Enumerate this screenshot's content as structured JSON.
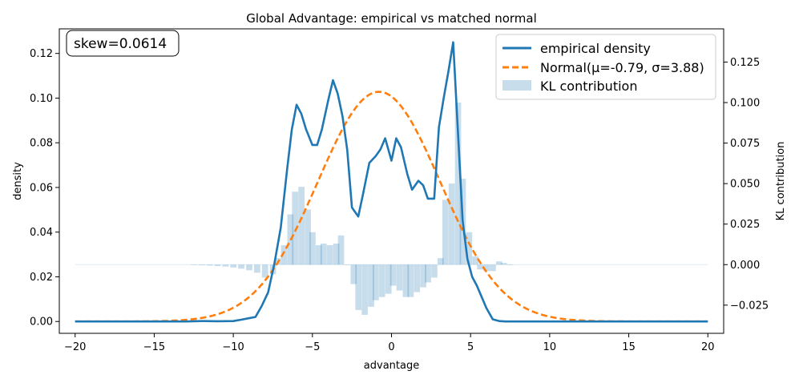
{
  "chart_data": {
    "type": "line",
    "title": "Global Advantage: empirical vs matched normal",
    "xlabel": "advantage",
    "ylabel": "density",
    "y2label": "KL contribution",
    "xlim": [
      -21,
      21
    ],
    "ylim": [
      -0.0053,
      0.131
    ],
    "y2lim": [
      -0.0424,
      0.1455
    ],
    "xticks": [
      -20,
      -15,
      -10,
      -5,
      0,
      5,
      10,
      15,
      20
    ],
    "xtick_labels": [
      "−20",
      "−15",
      "−10",
      "−5",
      "0",
      "5",
      "10",
      "15",
      "20"
    ],
    "yticks": [
      0.0,
      0.02,
      0.04,
      0.06,
      0.08,
      0.1,
      0.12
    ],
    "ytick_labels": [
      "0.00",
      "0.02",
      "0.04",
      "0.06",
      "0.08",
      "0.10",
      "0.12"
    ],
    "y2ticks": [
      -0.025,
      0.0,
      0.025,
      0.05,
      0.075,
      0.1,
      0.125
    ],
    "y2tick_labels": [
      "−0.025",
      "0.000",
      "0.025",
      "0.050",
      "0.075",
      "0.100",
      "0.125"
    ],
    "annotation": "skew=0.0614",
    "legend": [
      "empirical density",
      "Normal(μ=-0.79, σ=3.88)",
      "KL contribution"
    ],
    "colors": {
      "empirical": "#1f77b4",
      "normal": "#ff7f0e",
      "kl": "#1f77b4"
    },
    "empirical": {
      "x": [
        -20,
        -15,
        -13,
        -12,
        -11,
        -10,
        -9.5,
        -9,
        -8.6,
        -8.2,
        -7.8,
        -7.4,
        -7,
        -6.6,
        -6.3,
        -6,
        -5.7,
        -5.4,
        -5,
        -4.7,
        -4.4,
        -4,
        -3.7,
        -3.4,
        -3.1,
        -2.8,
        -2.5,
        -2.1,
        -1.8,
        -1.4,
        -1,
        -0.7,
        -0.4,
        0,
        0.3,
        0.6,
        1,
        1.3,
        1.7,
        2,
        2.3,
        2.7,
        3,
        3.3,
        3.6,
        3.9,
        4.2,
        4.5,
        4.8,
        5.1,
        5.4,
        5.7,
        6,
        6.4,
        6.8,
        7.2,
        7.6,
        8,
        9,
        10,
        15,
        20
      ],
      "y": [
        0,
        0,
        0,
        0.0002,
        0.0001,
        0.0002,
        0.0008,
        0.0015,
        0.002,
        0.007,
        0.013,
        0.026,
        0.042,
        0.068,
        0.086,
        0.097,
        0.093,
        0.086,
        0.079,
        0.079,
        0.086,
        0.099,
        0.108,
        0.102,
        0.092,
        0.077,
        0.051,
        0.047,
        0.057,
        0.071,
        0.074,
        0.077,
        0.082,
        0.072,
        0.082,
        0.078,
        0.066,
        0.059,
        0.063,
        0.061,
        0.055,
        0.055,
        0.087,
        0.1,
        0.112,
        0.125,
        0.085,
        0.045,
        0.028,
        0.02,
        0.016,
        0.011,
        0.006,
        0.001,
        0.0002,
        0,
        0,
        0,
        0,
        0,
        0,
        0
      ]
    },
    "normal": {
      "mu": -0.79,
      "sigma": 3.88,
      "x_range": [
        -20,
        20
      ]
    },
    "kl_contribution": {
      "bin_width": 0.375,
      "x": [
        -12.5,
        -12,
        -11.5,
        -11,
        -10.5,
        -10,
        -9.5,
        -9,
        -8.5,
        -8,
        -7.5,
        -7.2,
        -6.8,
        -6.4,
        -6.1,
        -5.7,
        -5.3,
        -5,
        -4.6,
        -4.3,
        -3.9,
        -3.5,
        -3.2,
        -2.8,
        -2.4,
        -2.1,
        -1.7,
        -1.3,
        -1,
        -0.6,
        -0.2,
        0.1,
        0.5,
        0.9,
        1.2,
        1.6,
        2,
        2.3,
        2.7,
        3.1,
        3.4,
        3.8,
        4.2,
        4.5,
        4.9,
        5.3,
        5.6,
        6,
        6.4,
        6.8,
        7.1,
        7.5
      ],
      "values": [
        -0.0002,
        -0.0004,
        -0.0006,
        -0.0009,
        -0.0012,
        -0.0018,
        -0.0025,
        -0.0035,
        -0.005,
        -0.008,
        -0.006,
        0.004,
        0.012,
        0.031,
        0.045,
        0.048,
        0.034,
        0.02,
        0.012,
        0.013,
        0.012,
        0.013,
        0.018,
        0.0,
        -0.012,
        -0.028,
        -0.031,
        -0.026,
        -0.022,
        -0.02,
        -0.018,
        -0.013,
        -0.016,
        -0.02,
        -0.02,
        -0.017,
        -0.014,
        -0.011,
        -0.008,
        0.004,
        0.04,
        0.05,
        0.1,
        0.053,
        0.02,
        0.005,
        -0.003,
        -0.004,
        -0.004,
        0.002,
        0.001,
        0.0
      ]
    }
  }
}
